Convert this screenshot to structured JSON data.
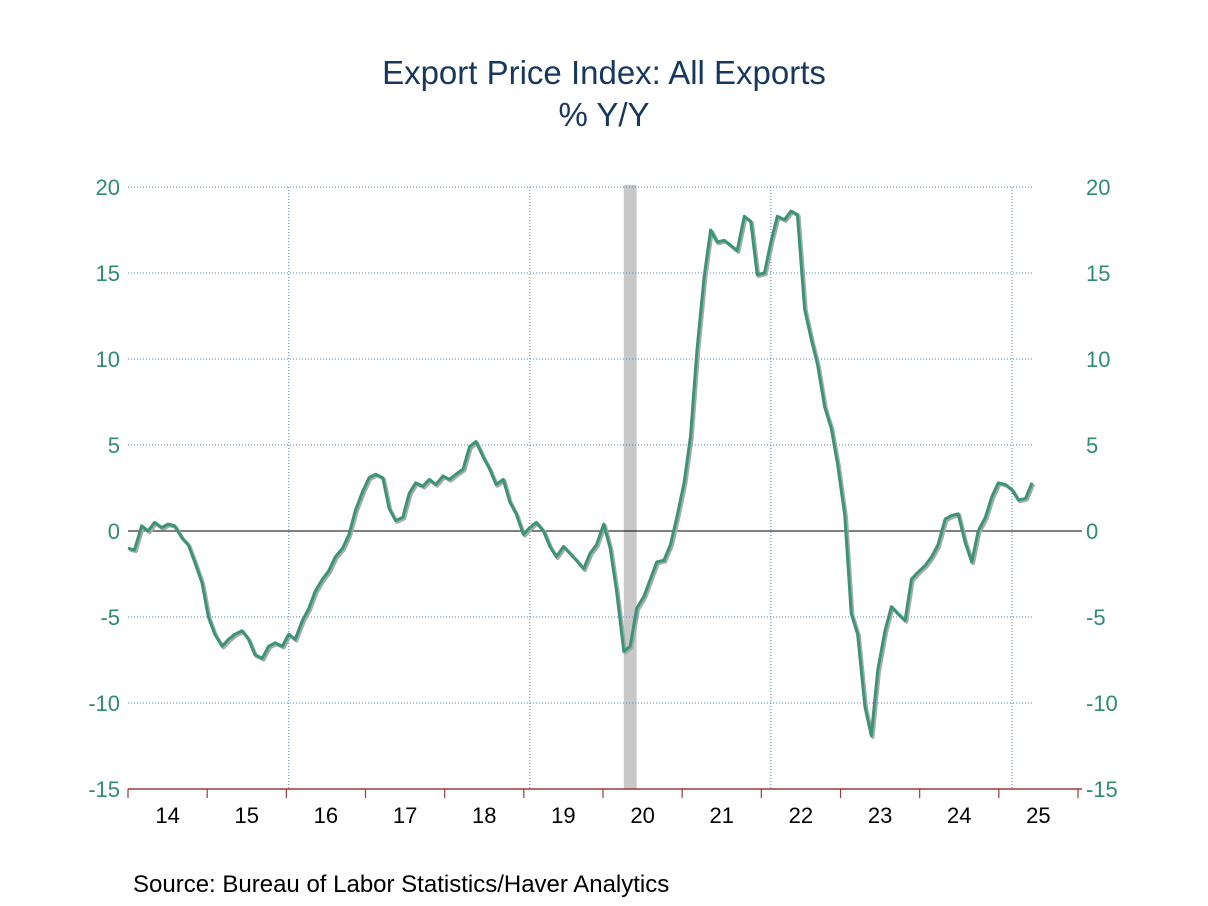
{
  "chart_data": {
    "type": "line",
    "title": "Export Price Index: All Exports",
    "subtitle": "% Y/Y",
    "ylim": [
      -15,
      20
    ],
    "y_ticks": [
      20,
      15,
      10,
      5,
      0,
      -5,
      -10,
      -15
    ],
    "x_tick_labels": [
      "14",
      "15",
      "16",
      "17",
      "18",
      "19",
      "20",
      "21",
      "22",
      "23",
      "24",
      "25"
    ],
    "x_range": [
      2014.0,
      2025.25
    ],
    "grid": true,
    "recession_band": [
      2020.17,
      2020.33
    ],
    "series": [
      {
        "points": [
          [
            2014.0,
            -1.0
          ],
          [
            2014.08,
            -1.1
          ],
          [
            2014.17,
            0.3
          ],
          [
            2014.25,
            0.0
          ],
          [
            2014.33,
            0.5
          ],
          [
            2014.42,
            0.2
          ],
          [
            2014.5,
            0.4
          ],
          [
            2014.58,
            0.3
          ],
          [
            2014.67,
            -0.4
          ],
          [
            2014.75,
            -0.8
          ],
          [
            2014.83,
            -1.8
          ],
          [
            2014.92,
            -3.0
          ],
          [
            2015.0,
            -5.0
          ],
          [
            2015.08,
            -6.0
          ],
          [
            2015.17,
            -6.7
          ],
          [
            2015.25,
            -6.3
          ],
          [
            2015.33,
            -6.0
          ],
          [
            2015.42,
            -5.8
          ],
          [
            2015.5,
            -6.3
          ],
          [
            2015.58,
            -7.2
          ],
          [
            2015.67,
            -7.4
          ],
          [
            2015.75,
            -6.7
          ],
          [
            2015.83,
            -6.5
          ],
          [
            2015.92,
            -6.7
          ],
          [
            2016.0,
            -6.0
          ],
          [
            2016.08,
            -6.3
          ],
          [
            2016.17,
            -5.2
          ],
          [
            2016.25,
            -4.5
          ],
          [
            2016.33,
            -3.5
          ],
          [
            2016.42,
            -2.8
          ],
          [
            2016.5,
            -2.3
          ],
          [
            2016.58,
            -1.5
          ],
          [
            2016.67,
            -1.0
          ],
          [
            2016.75,
            -0.2
          ],
          [
            2016.83,
            1.2
          ],
          [
            2016.92,
            2.3
          ],
          [
            2017.0,
            3.1
          ],
          [
            2017.08,
            3.3
          ],
          [
            2017.17,
            3.1
          ],
          [
            2017.25,
            1.3
          ],
          [
            2017.33,
            0.6
          ],
          [
            2017.42,
            0.8
          ],
          [
            2017.5,
            2.2
          ],
          [
            2017.58,
            2.8
          ],
          [
            2017.67,
            2.6
          ],
          [
            2017.75,
            3.0
          ],
          [
            2017.83,
            2.7
          ],
          [
            2017.92,
            3.2
          ],
          [
            2018.0,
            3.0
          ],
          [
            2018.08,
            3.3
          ],
          [
            2018.17,
            3.6
          ],
          [
            2018.25,
            4.9
          ],
          [
            2018.33,
            5.2
          ],
          [
            2018.42,
            4.3
          ],
          [
            2018.5,
            3.6
          ],
          [
            2018.58,
            2.7
          ],
          [
            2018.67,
            3.0
          ],
          [
            2018.75,
            1.7
          ],
          [
            2018.83,
            1.0
          ],
          [
            2018.92,
            -0.2
          ],
          [
            2019.0,
            0.2
          ],
          [
            2019.08,
            0.5
          ],
          [
            2019.17,
            0.0
          ],
          [
            2019.25,
            -0.9
          ],
          [
            2019.33,
            -1.5
          ],
          [
            2019.42,
            -0.9
          ],
          [
            2019.5,
            -1.3
          ],
          [
            2019.58,
            -1.7
          ],
          [
            2019.67,
            -2.2
          ],
          [
            2019.75,
            -1.3
          ],
          [
            2019.83,
            -0.8
          ],
          [
            2019.92,
            0.4
          ],
          [
            2020.0,
            -1.0
          ],
          [
            2020.08,
            -3.5
          ],
          [
            2020.17,
            -7.0
          ],
          [
            2020.25,
            -6.7
          ],
          [
            2020.33,
            -4.5
          ],
          [
            2020.42,
            -3.8
          ],
          [
            2020.5,
            -2.8
          ],
          [
            2020.58,
            -1.8
          ],
          [
            2020.67,
            -1.7
          ],
          [
            2020.75,
            -0.8
          ],
          [
            2020.83,
            0.8
          ],
          [
            2020.92,
            2.8
          ],
          [
            2021.0,
            5.5
          ],
          [
            2021.08,
            10.5
          ],
          [
            2021.17,
            14.8
          ],
          [
            2021.25,
            17.5
          ],
          [
            2021.33,
            16.8
          ],
          [
            2021.42,
            16.9
          ],
          [
            2021.5,
            16.6
          ],
          [
            2021.58,
            16.3
          ],
          [
            2021.67,
            18.3
          ],
          [
            2021.75,
            18.0
          ],
          [
            2021.83,
            14.9
          ],
          [
            2021.92,
            15.0
          ],
          [
            2022.0,
            16.8
          ],
          [
            2022.08,
            18.3
          ],
          [
            2022.17,
            18.1
          ],
          [
            2022.25,
            18.6
          ],
          [
            2022.33,
            18.4
          ],
          [
            2022.42,
            12.9
          ],
          [
            2022.5,
            11.2
          ],
          [
            2022.58,
            9.7
          ],
          [
            2022.67,
            7.2
          ],
          [
            2022.75,
            6.0
          ],
          [
            2022.83,
            3.9
          ],
          [
            2022.92,
            0.9
          ],
          [
            2023.0,
            -4.8
          ],
          [
            2023.08,
            -6.0
          ],
          [
            2023.17,
            -10.2
          ],
          [
            2023.25,
            -11.9
          ],
          [
            2023.33,
            -8.1
          ],
          [
            2023.42,
            -5.8
          ],
          [
            2023.5,
            -4.4
          ],
          [
            2023.58,
            -4.8
          ],
          [
            2023.67,
            -5.2
          ],
          [
            2023.75,
            -2.8
          ],
          [
            2023.83,
            -2.4
          ],
          [
            2023.92,
            -2.0
          ],
          [
            2024.0,
            -1.5
          ],
          [
            2024.08,
            -0.8
          ],
          [
            2024.17,
            0.7
          ],
          [
            2024.25,
            0.9
          ],
          [
            2024.33,
            1.0
          ],
          [
            2024.42,
            -0.7
          ],
          [
            2024.5,
            -1.8
          ],
          [
            2024.58,
            0.0
          ],
          [
            2024.67,
            0.8
          ],
          [
            2024.75,
            2.0
          ],
          [
            2024.83,
            2.8
          ],
          [
            2024.92,
            2.7
          ],
          [
            2025.0,
            2.4
          ],
          [
            2025.08,
            1.8
          ],
          [
            2025.17,
            1.9
          ],
          [
            2025.25,
            2.8
          ]
        ]
      }
    ],
    "colors": {
      "series": "#3a9478",
      "series_shadow": "#a9aaa8",
      "tick_text": "#2e8c72",
      "grid": "#4f81bd",
      "recession": "#c8c8c8",
      "x_axis": "#9a3b3b",
      "title": "#17375e"
    }
  },
  "source": "Source:  Bureau of Labor Statistics/Haver Analytics"
}
